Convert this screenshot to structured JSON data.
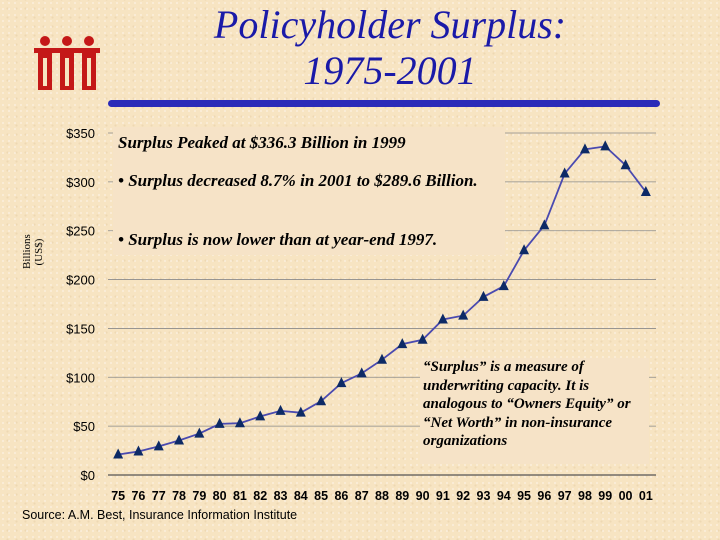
{
  "title_line1": "Policyholder Surplus:",
  "title_line2": "1975-2001",
  "logo": "iii-logo",
  "ylabel_line1": "Billions",
  "ylabel_line2": "(US$)",
  "callout": {
    "line1": "Surplus Peaked at $336.3 Billion in 1999",
    "line2": "• Surplus decreased 8.7% in 2001 to $289.6 Billion.",
    "line3": "• Surplus is now lower than at year-end 1997."
  },
  "definition": "“Surplus” is a measure of underwriting capacity.  It is analogous to “Owners Equity” or “Net Worth” in non-insurance organizations",
  "source": "Source:  A.M. Best, Insurance Information Institute",
  "colors": {
    "title": "#1a1aa8",
    "line": "#4a4ab0",
    "marker": "#0d2a66"
  },
  "chart_data": {
    "type": "line",
    "x": [
      "75",
      "76",
      "77",
      "78",
      "79",
      "80",
      "81",
      "82",
      "83",
      "84",
      "85",
      "86",
      "87",
      "88",
      "89",
      "90",
      "91",
      "92",
      "93",
      "94",
      "95",
      "96",
      "97",
      "98",
      "99",
      "00",
      "01"
    ],
    "series": [
      {
        "values": [
          21.0,
          24.0,
          29.3,
          35.3,
          42.4,
          52.3,
          53.0,
          60.0,
          65.6,
          63.8,
          75.5,
          94.0,
          104.0,
          118.0,
          134.0,
          138.4,
          159.1,
          163.1,
          182.3,
          193.3,
          230.0,
          255.5,
          308.5,
          333.3,
          336.3,
          317.0,
          289.6
        ]
      }
    ],
    "yticks": [
      "$0",
      "$50",
      "$100",
      "$150",
      "$200",
      "$250",
      "$300",
      "$350"
    ],
    "ylim": [
      0,
      350
    ],
    "grid": true
  }
}
